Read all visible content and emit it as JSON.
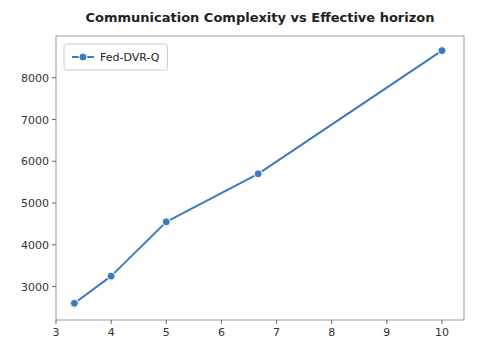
{
  "chart_data": {
    "type": "line",
    "title": "Communication Complexity vs Effective horizon",
    "x": [
      3.3333,
      4.0,
      5.0,
      6.6667,
      10.0
    ],
    "series": [
      {
        "name": "Fed-DVR-Q",
        "color": "#3a7abf",
        "values": [
          2600,
          3250,
          4550,
          5700,
          8650
        ],
        "marker": "o"
      }
    ],
    "xlim": [
      3.0,
      10.4
    ],
    "ylim": [
      2200,
      9000
    ],
    "xticks": [
      3,
      4,
      5,
      6,
      7,
      8,
      9,
      10
    ],
    "yticks": [
      3000,
      4000,
      5000,
      6000,
      7000,
      8000
    ],
    "legend": "upper left"
  }
}
